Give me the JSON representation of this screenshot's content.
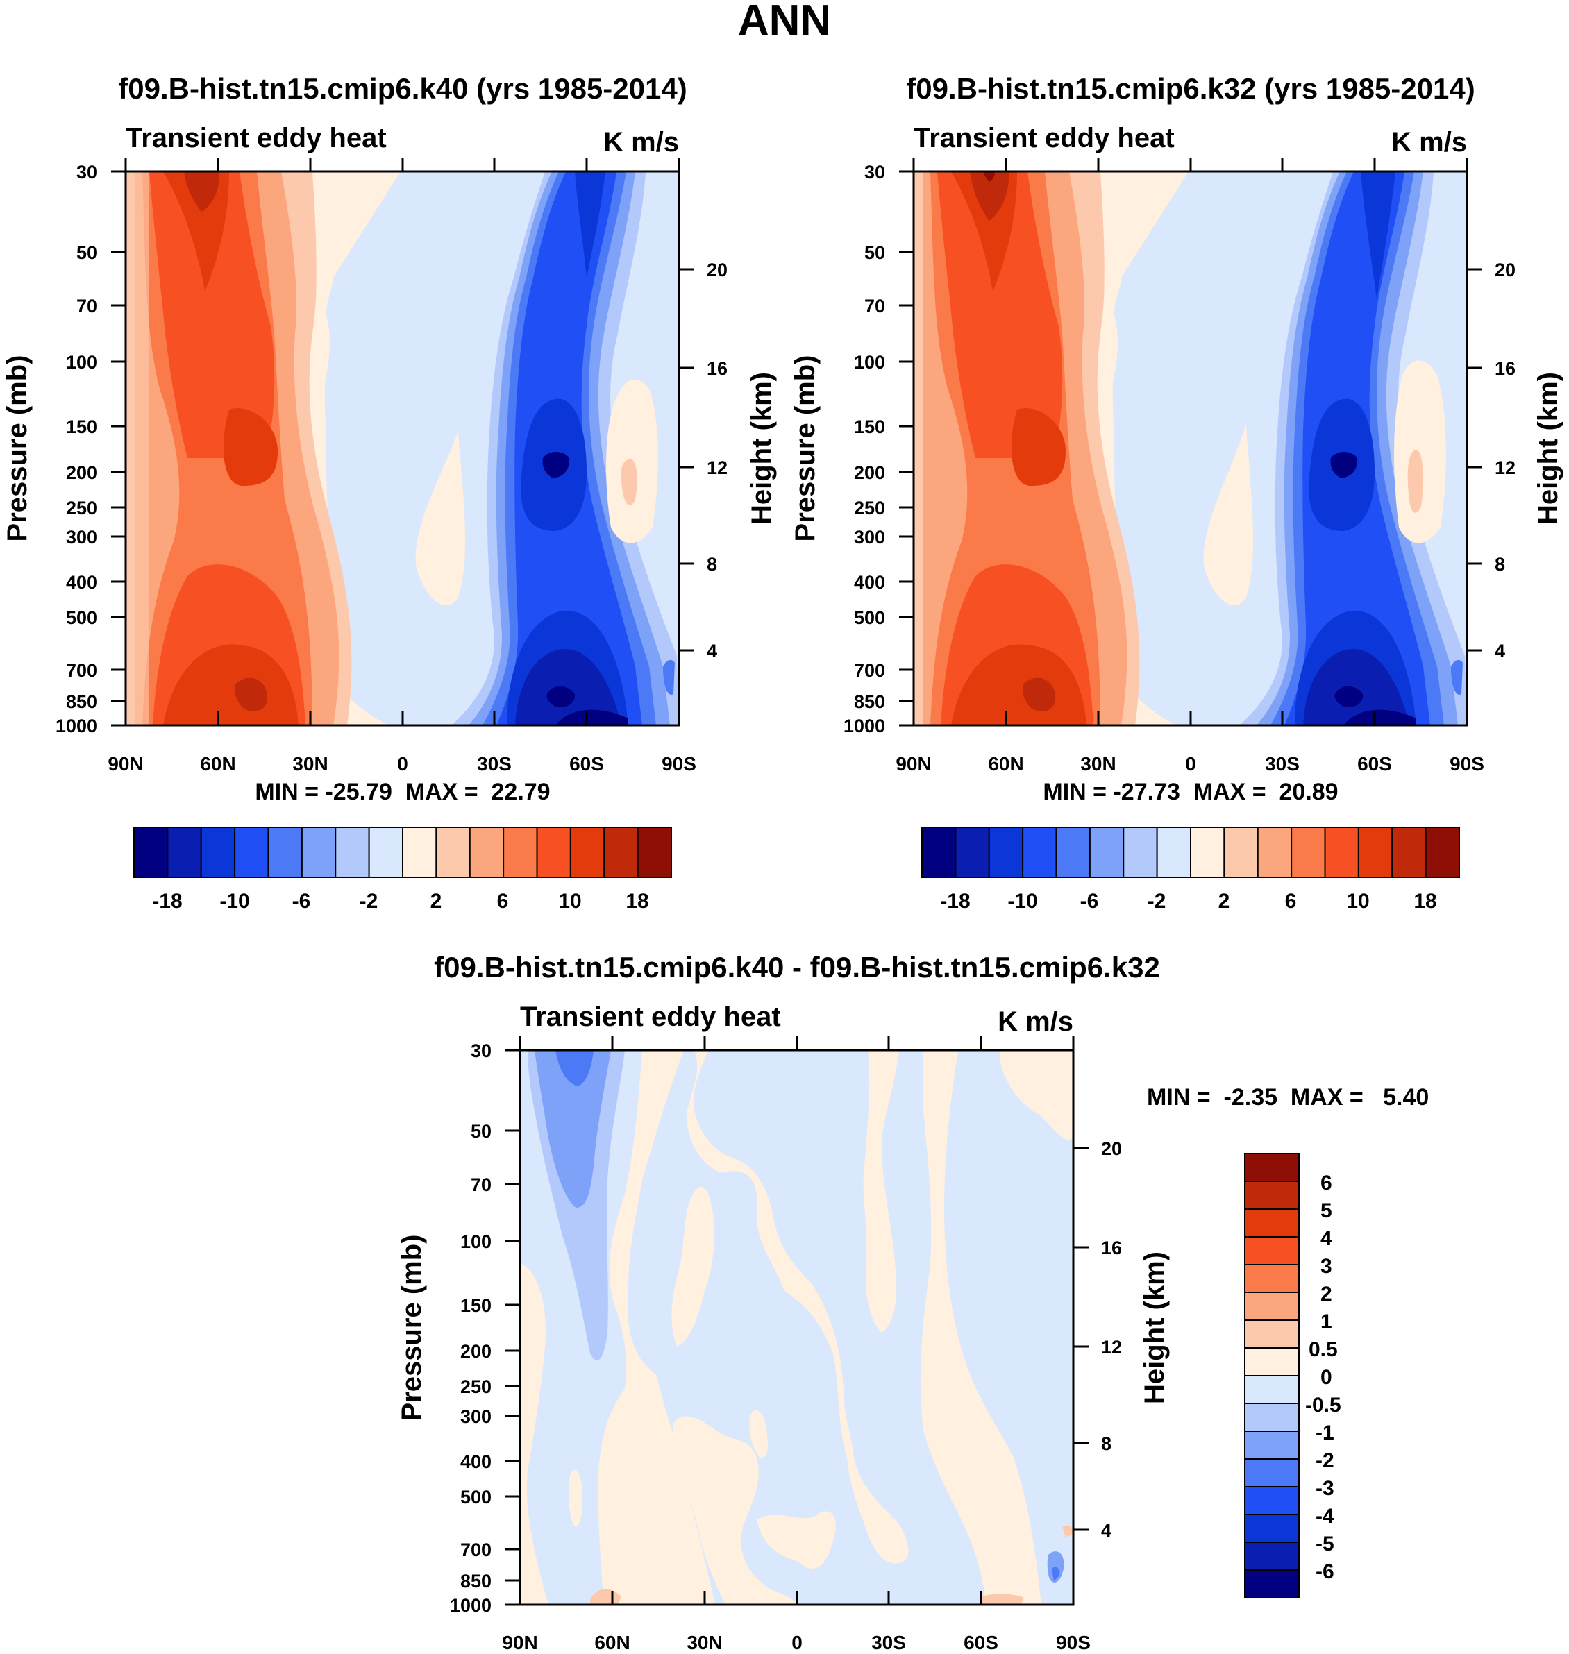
{
  "page_title": "ANN",
  "colors": {
    "main_scale": [
      "#000080",
      "#0a1fb2",
      "#0b37d8",
      "#1f4ff5",
      "#4c7af7",
      "#7da2f8",
      "#b3c9fb",
      "#d9e8fc",
      "#fff0e0",
      "#fdc9ac",
      "#fca67e",
      "#fb7a4a",
      "#f75023",
      "#e33b0c",
      "#c02a0a",
      "#8f0e05"
    ],
    "diff_scale": [
      "#000080",
      "#0a1fb2",
      "#0b37d8",
      "#1f4ff5",
      "#4c7af7",
      "#7da2f8",
      "#b3c9fb",
      "#d9e8fc",
      "#fff0e0",
      "#fdc9ac",
      "#fca67e",
      "#fb7a4a",
      "#f75023",
      "#e33b0c",
      "#c02a0a",
      "#8f0e05"
    ]
  },
  "chart_data": [
    {
      "type": "heatmap",
      "id": "panel-k40",
      "title": "f09.B-hist.tn15.cmip6.k40 (yrs 1985-2014)",
      "subtitle_left": "Transient eddy heat",
      "subtitle_right": "K m/s",
      "xlabel": "",
      "ylabel": "Pressure (mb)",
      "y2label": "Height (km)",
      "x_ticks": [
        "90N",
        "60N",
        "30N",
        "0",
        "30S",
        "60S",
        "90S"
      ],
      "x_range": [
        90,
        -90
      ],
      "y_ticks": [
        "30",
        "50",
        "70",
        "100",
        "150",
        "200",
        "250",
        "300",
        "400",
        "500",
        "700",
        "850",
        "1000"
      ],
      "y_range": [
        1000,
        30
      ],
      "y2_ticks": [
        "20",
        "16",
        "12",
        "8",
        "4"
      ],
      "stats": "MIN = -25.79  MAX =  22.79",
      "colorbar_labels": [
        "-18",
        "-10",
        "-6",
        "-2",
        "2",
        "6",
        "10",
        "18"
      ],
      "levels": [
        -18,
        -14,
        -10,
        -8,
        -6,
        -4,
        -2,
        0,
        2,
        4,
        6,
        8,
        10,
        14,
        18
      ],
      "features": [
        {
          "lat": 65,
          "p": 30,
          "value": 18
        },
        {
          "lat": 57,
          "p": 200,
          "value": 12
        },
        {
          "lat": 55,
          "p": 850,
          "value": 16
        },
        {
          "lat": -52,
          "p": 200,
          "value": -16
        },
        {
          "lat": -55,
          "p": 850,
          "value": -20
        },
        {
          "lat": -58,
          "p": 30,
          "value": -14
        }
      ]
    },
    {
      "type": "heatmap",
      "id": "panel-k32",
      "title": "f09.B-hist.tn15.cmip6.k32 (yrs 1985-2014)",
      "subtitle_left": "Transient eddy heat",
      "subtitle_right": "K m/s",
      "xlabel": "",
      "ylabel": "Pressure (mb)",
      "y2label": "Height (km)",
      "x_ticks": [
        "90N",
        "60N",
        "30N",
        "0",
        "30S",
        "60S",
        "90S"
      ],
      "x_range": [
        90,
        -90
      ],
      "y_ticks": [
        "30",
        "50",
        "70",
        "100",
        "150",
        "200",
        "250",
        "300",
        "400",
        "500",
        "700",
        "850",
        "1000"
      ],
      "y_range": [
        1000,
        30
      ],
      "y2_ticks": [
        "20",
        "16",
        "12",
        "8",
        "4"
      ],
      "stats": "MIN = -27.73  MAX =  20.89",
      "colorbar_labels": [
        "-18",
        "-10",
        "-6",
        "-2",
        "2",
        "6",
        "10",
        "18"
      ],
      "levels": [
        -18,
        -14,
        -10,
        -8,
        -6,
        -4,
        -2,
        0,
        2,
        4,
        6,
        8,
        10,
        14,
        18
      ],
      "features": [
        {
          "lat": 65,
          "p": 30,
          "value": 20
        },
        {
          "lat": 57,
          "p": 200,
          "value": 12
        },
        {
          "lat": 55,
          "p": 850,
          "value": 16
        },
        {
          "lat": -52,
          "p": 200,
          "value": -18
        },
        {
          "lat": -55,
          "p": 850,
          "value": -20
        },
        {
          "lat": -60,
          "p": 30,
          "value": -16
        }
      ]
    },
    {
      "type": "heatmap",
      "id": "panel-diff",
      "title": "f09.B-hist.tn15.cmip6.k40 - f09.B-hist.tn15.cmip6.k32",
      "subtitle_left": "Transient eddy heat",
      "subtitle_right": "K m/s",
      "xlabel": "",
      "ylabel": "Pressure (mb)",
      "y2label": "Height (km)",
      "x_ticks": [
        "90N",
        "60N",
        "30N",
        "0",
        "30S",
        "60S",
        "90S"
      ],
      "x_range": [
        90,
        -90
      ],
      "y_ticks": [
        "30",
        "50",
        "70",
        "100",
        "150",
        "200",
        "250",
        "300",
        "400",
        "500",
        "700",
        "850",
        "1000"
      ],
      "y_range": [
        1000,
        30
      ],
      "y2_ticks": [
        "20",
        "16",
        "12",
        "8",
        "4"
      ],
      "stats": "MIN =  -2.35  MAX =   5.40",
      "colorbar_labels": [
        "6",
        "5",
        "4",
        "3",
        "2",
        "1",
        "0.5",
        "0",
        "-0.5",
        "-1",
        "-2",
        "-3",
        "-4",
        "-5",
        "-6"
      ],
      "levels": [
        -6,
        -5,
        -4,
        -3,
        -2,
        -1,
        -0.5,
        0,
        0.5,
        1,
        2,
        3,
        4,
        5,
        6
      ],
      "features": [
        {
          "lat": 70,
          "p": 30,
          "value": -2.3
        },
        {
          "lat": 70,
          "p": 120,
          "value": -1
        },
        {
          "lat": 40,
          "p": 500,
          "value": 0.3
        },
        {
          "lat": -50,
          "p": 100,
          "value": 0.3
        },
        {
          "lat": -85,
          "p": 700,
          "value": 0.5
        }
      ]
    }
  ]
}
